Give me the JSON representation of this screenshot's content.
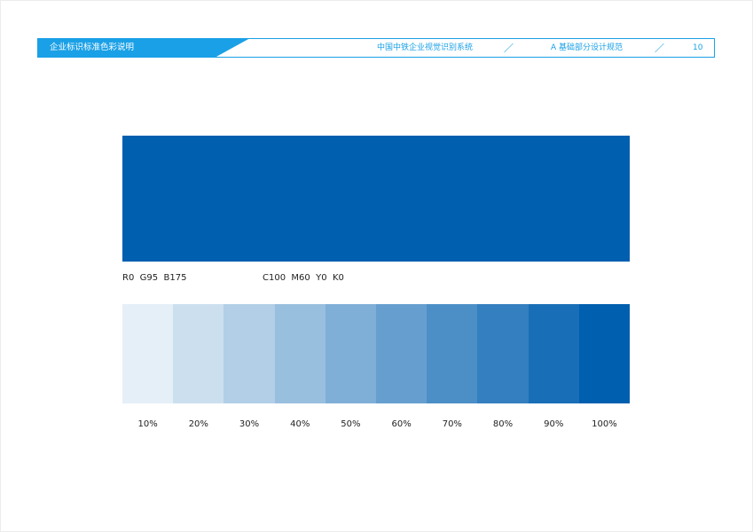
{
  "header": {
    "section_title": "企业标识标准色彩说明",
    "system_name": "中国中铁企业视觉识别系统",
    "chapter": "A  基础部分设计规范",
    "page_number": "10",
    "accent_color": "#1aa0e6"
  },
  "standard_color": {
    "hex": "#005faf",
    "rgb_label": "R0  G95  B175",
    "cmyk_label": "C100  M60  Y0  K0"
  },
  "tints": [
    {
      "label": "10%",
      "percent": 10,
      "color": "#e5eff7"
    },
    {
      "label": "20%",
      "percent": 20,
      "color": "#ccdfef"
    },
    {
      "label": "30%",
      "percent": 30,
      "color": "#b2cfe7"
    },
    {
      "label": "40%",
      "percent": 40,
      "color": "#99bfdf"
    },
    {
      "label": "50%",
      "percent": 50,
      "color": "#7fafd7"
    },
    {
      "label": "60%",
      "percent": 60,
      "color": "#669fcf"
    },
    {
      "label": "70%",
      "percent": 70,
      "color": "#4c8fc7"
    },
    {
      "label": "80%",
      "percent": 80,
      "color": "#337fbf"
    },
    {
      "label": "90%",
      "percent": 90,
      "color": "#196fb7"
    },
    {
      "label": "100%",
      "percent": 100,
      "color": "#005faf"
    }
  ]
}
